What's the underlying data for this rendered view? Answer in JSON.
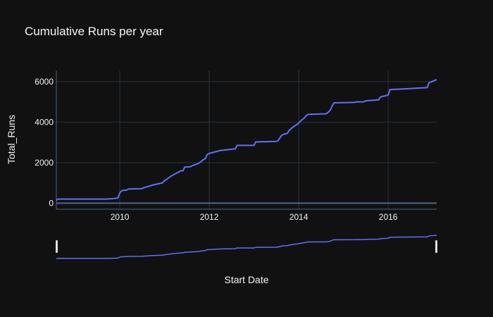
{
  "chart_data": {
    "type": "line",
    "title": "Cumulative Runs per year",
    "xlabel": "Start Date",
    "ylabel": "Total_Runs",
    "x_type": "date",
    "xlim": [
      "2008-08-01",
      "2017-01-31"
    ],
    "ylim": [
      -300,
      6550
    ],
    "x_ticks": [
      {
        "date": "2010-01-01",
        "label": "2010"
      },
      {
        "date": "2012-01-01",
        "label": "2012"
      },
      {
        "date": "2014-01-01",
        "label": "2014"
      },
      {
        "date": "2016-01-01",
        "label": "2016"
      }
    ],
    "y_ticks": [
      0,
      2000,
      4000,
      6000
    ],
    "grid": true,
    "rangeslider": true,
    "colors": {
      "background": "#111111",
      "line": "#636efa",
      "grid": "#283442",
      "text": "#f2f5fa"
    },
    "series": [
      {
        "color": "#636efa",
        "x": [
          "2008-08-01",
          "2008-08-15",
          "2008-10-01",
          "2009-01-01",
          "2009-04-01",
          "2009-06-01",
          "2009-08-01",
          "2009-09-15",
          "2009-11-01",
          "2009-12-15",
          "2010-01-05",
          "2010-01-20",
          "2010-03-01",
          "2010-03-15",
          "2010-07-01",
          "2010-07-15",
          "2010-10-01",
          "2010-12-15",
          "2011-01-01",
          "2011-01-20",
          "2011-02-15",
          "2011-03-15",
          "2011-04-15",
          "2011-05-01",
          "2011-05-15",
          "2011-06-01",
          "2011-06-15",
          "2011-08-01",
          "2011-08-15",
          "2011-10-01",
          "2011-10-15",
          "2011-11-15",
          "2011-12-01",
          "2011-12-15",
          "2012-01-01",
          "2012-03-01",
          "2012-04-01",
          "2012-08-01",
          "2012-08-15",
          "2013-01-01",
          "2013-01-15",
          "2013-07-01",
          "2013-07-15",
          "2013-08-15",
          "2013-09-01",
          "2013-10-01",
          "2013-10-15",
          "2013-11-15",
          "2014-01-01",
          "2014-01-15",
          "2014-02-15",
          "2014-03-01",
          "2014-03-15",
          "2014-07-01",
          "2014-08-01",
          "2014-08-15",
          "2014-09-01",
          "2014-09-15",
          "2014-10-01",
          "2014-10-15",
          "2015-04-01",
          "2015-04-15",
          "2015-06-15",
          "2015-07-01",
          "2015-10-15",
          "2015-11-01",
          "2015-12-15",
          "2016-01-01",
          "2016-01-15",
          "2016-11-15",
          "2016-12-01",
          "2017-01-31"
        ],
        "y": [
          150,
          200,
          200,
          200,
          200,
          200,
          200,
          200,
          220,
          250,
          550,
          620,
          650,
          700,
          720,
          760,
          900,
          1000,
          1120,
          1180,
          1300,
          1400,
          1500,
          1550,
          1600,
          1600,
          1780,
          1800,
          1850,
          1950,
          2000,
          2150,
          2200,
          2400,
          2450,
          2550,
          2600,
          2680,
          2850,
          2850,
          3020,
          3050,
          3080,
          3350,
          3400,
          3450,
          3600,
          3750,
          3950,
          4050,
          4200,
          4300,
          4380,
          4400,
          4400,
          4420,
          4500,
          4600,
          4800,
          4950,
          4970,
          5000,
          5000,
          5050,
          5100,
          5250,
          5300,
          5350,
          5600,
          5700,
          5950,
          6100
        ]
      }
    ]
  }
}
